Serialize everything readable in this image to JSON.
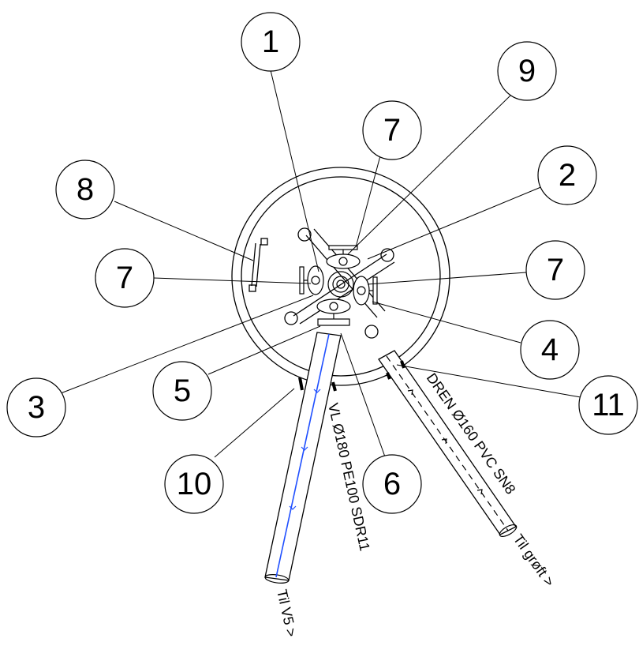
{
  "diagram": {
    "callouts": [
      {
        "id": "1",
        "label": "1"
      },
      {
        "id": "9",
        "label": "9"
      },
      {
        "id": "7a",
        "label": "7"
      },
      {
        "id": "2",
        "label": "2"
      },
      {
        "id": "8",
        "label": "8"
      },
      {
        "id": "7b",
        "label": "7"
      },
      {
        "id": "7c",
        "label": "7"
      },
      {
        "id": "4",
        "label": "4"
      },
      {
        "id": "3",
        "label": "3"
      },
      {
        "id": "5",
        "label": "5"
      },
      {
        "id": "11",
        "label": "11"
      },
      {
        "id": "10",
        "label": "10"
      },
      {
        "id": "6",
        "label": "6"
      }
    ],
    "pipe_labels": {
      "water_line": "VL  Ø180  PE100  SDR11",
      "water_dest": "Til  V5 >",
      "drain_line": "DREN  Ø160  PVC  SN8",
      "drain_dest": "Til  grøft >"
    }
  },
  "colors": {
    "line": "#000000",
    "water_flow": "#1f4fff",
    "background": "#ffffff"
  }
}
